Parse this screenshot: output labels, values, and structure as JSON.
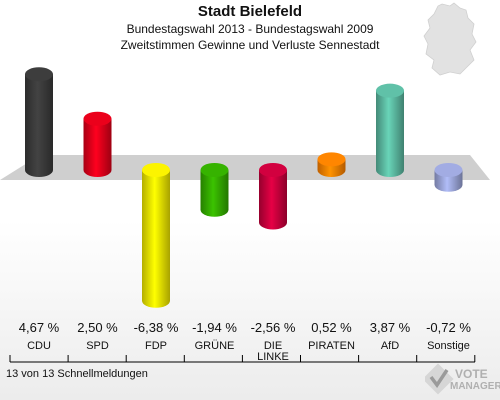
{
  "header": {
    "title": "Stadt Bielefeld",
    "subtitle": "Bundestagswahl 2013 - Bundestagswahl 2009",
    "subtitle2": "Zweitstimmen Gewinne und Verluste Sennestadt"
  },
  "footer": {
    "text": "13 von 13 Schnellmeldungen"
  },
  "logo": {
    "text_top": "VOTE",
    "text_bottom": "MANAGER",
    "icon": "check-mark-icon"
  },
  "map_icon": "germany-map-icon",
  "chart_data": {
    "type": "bar",
    "title": "",
    "xlabel": "",
    "ylabel": "",
    "ylim": [
      -6.38,
      4.67
    ],
    "categories": [
      "CDU",
      "SPD",
      "FDP",
      "GRÜNE",
      "DIE LINKE",
      "PIRATEN",
      "AfD",
      "Sonstige"
    ],
    "values": [
      4.67,
      2.5,
      -6.38,
      -1.94,
      -2.56,
      0.52,
      3.87,
      -0.72
    ],
    "value_labels": [
      "4,67 %",
      "2,50 %",
      "-6,38 %",
      "-1,94 %",
      "-2,56 %",
      "0,52 %",
      "3,87 %",
      "-0,72 %"
    ],
    "colors": [
      "#3a3a3a",
      "#e0001a",
      "#f0e800",
      "#33aa00",
      "#c8003c",
      "#ff8000",
      "#5bb8a0",
      "#9aa4d8"
    ],
    "grid": false,
    "legend": "none"
  }
}
